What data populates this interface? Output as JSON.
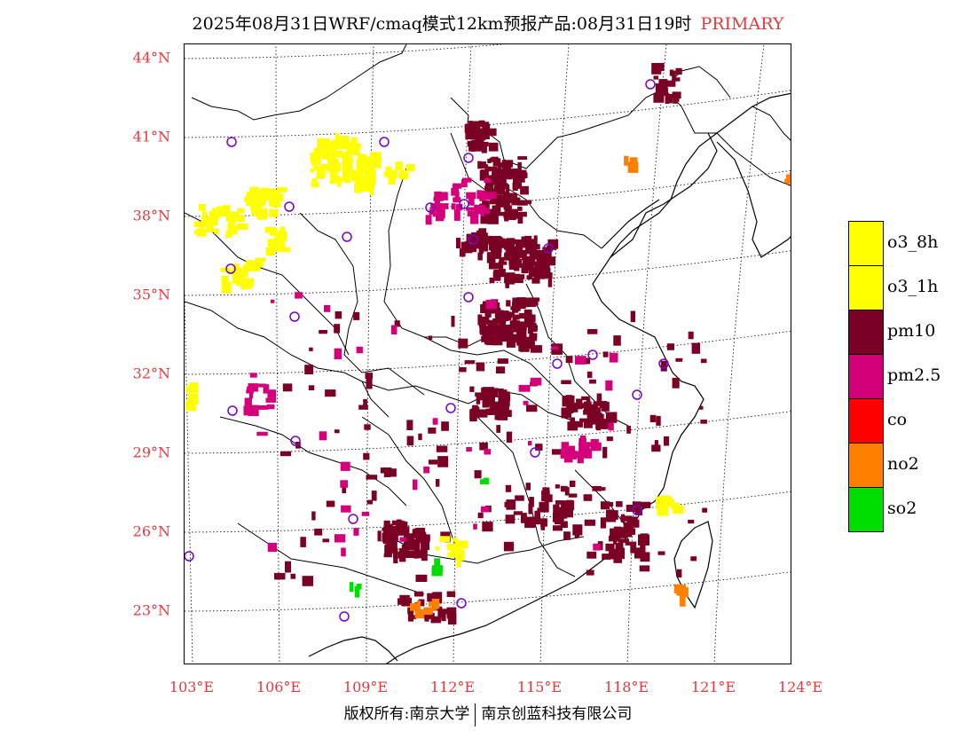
{
  "title": {
    "main": "2025年08月31日WRF/cmaq模式12km预报产品:08月31日19时",
    "tag": "PRIMARY"
  },
  "colors": {
    "label_red": "#e8383d",
    "pm10": "#7a0026",
    "pm25": "#d4007a",
    "o3": "#ffff00",
    "co": "#ff0000",
    "no2": "#ff8000",
    "so2": "#00dd00",
    "station": "#7a00cc"
  },
  "lat_labels": [
    "44°N",
    "41°N",
    "38°N",
    "35°N",
    "32°N",
    "29°N",
    "26°N",
    "23°N"
  ],
  "lon_labels": [
    "103°E",
    "106°E",
    "109°E",
    "112°E",
    "115°E",
    "118°E",
    "121°E",
    "124°E"
  ],
  "legend": [
    {
      "label": "o3_8h",
      "color": "#ffff00"
    },
    {
      "label": "o3_1h",
      "color": "#ffff00"
    },
    {
      "label": "pm10",
      "color": "#7a0026"
    },
    {
      "label": "pm2.5",
      "color": "#d4007a"
    },
    {
      "label": "co",
      "color": "#ff0000"
    },
    {
      "label": "no2",
      "color": "#ff8000"
    },
    {
      "label": "so2",
      "color": "#00dd00"
    }
  ],
  "copyright": {
    "left": "版权所有:南京大学",
    "right": "南京创蓝科技有限公司"
  }
}
